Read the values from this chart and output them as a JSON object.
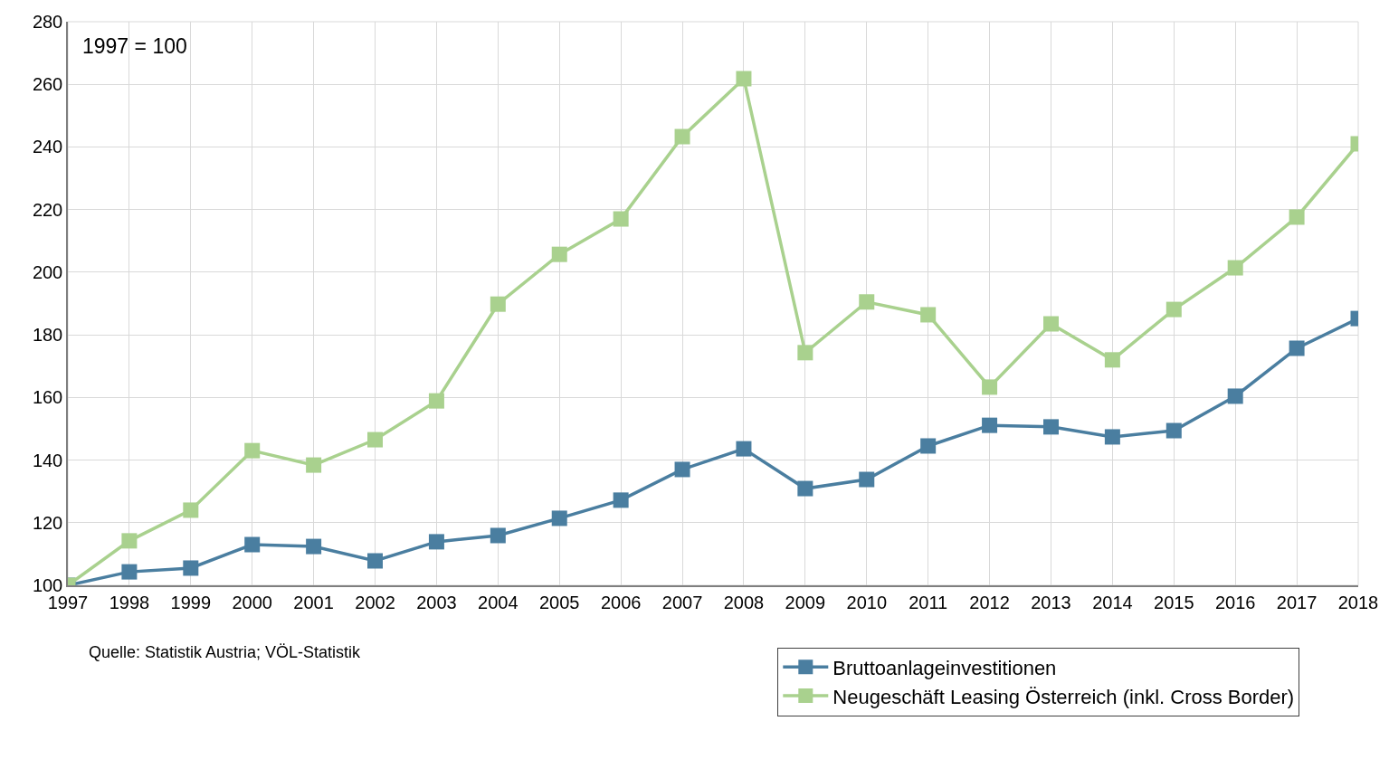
{
  "chart_data": {
    "type": "line",
    "x": [
      1997,
      1998,
      1999,
      2000,
      2001,
      2002,
      2003,
      2004,
      2005,
      2006,
      2007,
      2008,
      2009,
      2010,
      2011,
      2012,
      2013,
      2014,
      2015,
      2016,
      2017,
      2018
    ],
    "series": [
      {
        "name": "Bruttoanlageinvestitionen",
        "color": "#4a7ea0",
        "values": [
          100,
          104.3,
          105.5,
          113,
          112.4,
          107.8,
          113.9,
          115.9,
          121.4,
          127.2,
          137,
          143.6,
          130.9,
          133.8,
          144.5,
          151.1,
          150.6,
          147.4,
          149.4,
          160.4,
          175.7,
          185.2
        ]
      },
      {
        "name": "Neugeschäft Leasing Österreich (inkl. Cross Border)",
        "color": "#a9d18e",
        "values": [
          100,
          114.2,
          124,
          143,
          138.4,
          146.5,
          158.9,
          189.8,
          205.7,
          217,
          243.3,
          261.8,
          174.3,
          190.5,
          186.4,
          163.3,
          183.5,
          172,
          188.1,
          201.4,
          217.6,
          241
        ]
      }
    ],
    "xlim": [
      1997,
      2018
    ],
    "xticks": [
      1997,
      1998,
      1999,
      2000,
      2001,
      2002,
      2003,
      2004,
      2005,
      2006,
      2007,
      2008,
      2009,
      2010,
      2011,
      2012,
      2013,
      2014,
      2015,
      2016,
      2017,
      2018
    ],
    "ylim": [
      100,
      280
    ],
    "yticks": [
      100,
      120,
      140,
      160,
      180,
      200,
      220,
      240,
      260,
      280
    ],
    "grid": true,
    "legend": "bottom right",
    "marker": "square",
    "line_style": "solid",
    "annotations": [
      "1997 = 100",
      "Quelle: Statistik Austria; VÖL-Statistik"
    ]
  }
}
